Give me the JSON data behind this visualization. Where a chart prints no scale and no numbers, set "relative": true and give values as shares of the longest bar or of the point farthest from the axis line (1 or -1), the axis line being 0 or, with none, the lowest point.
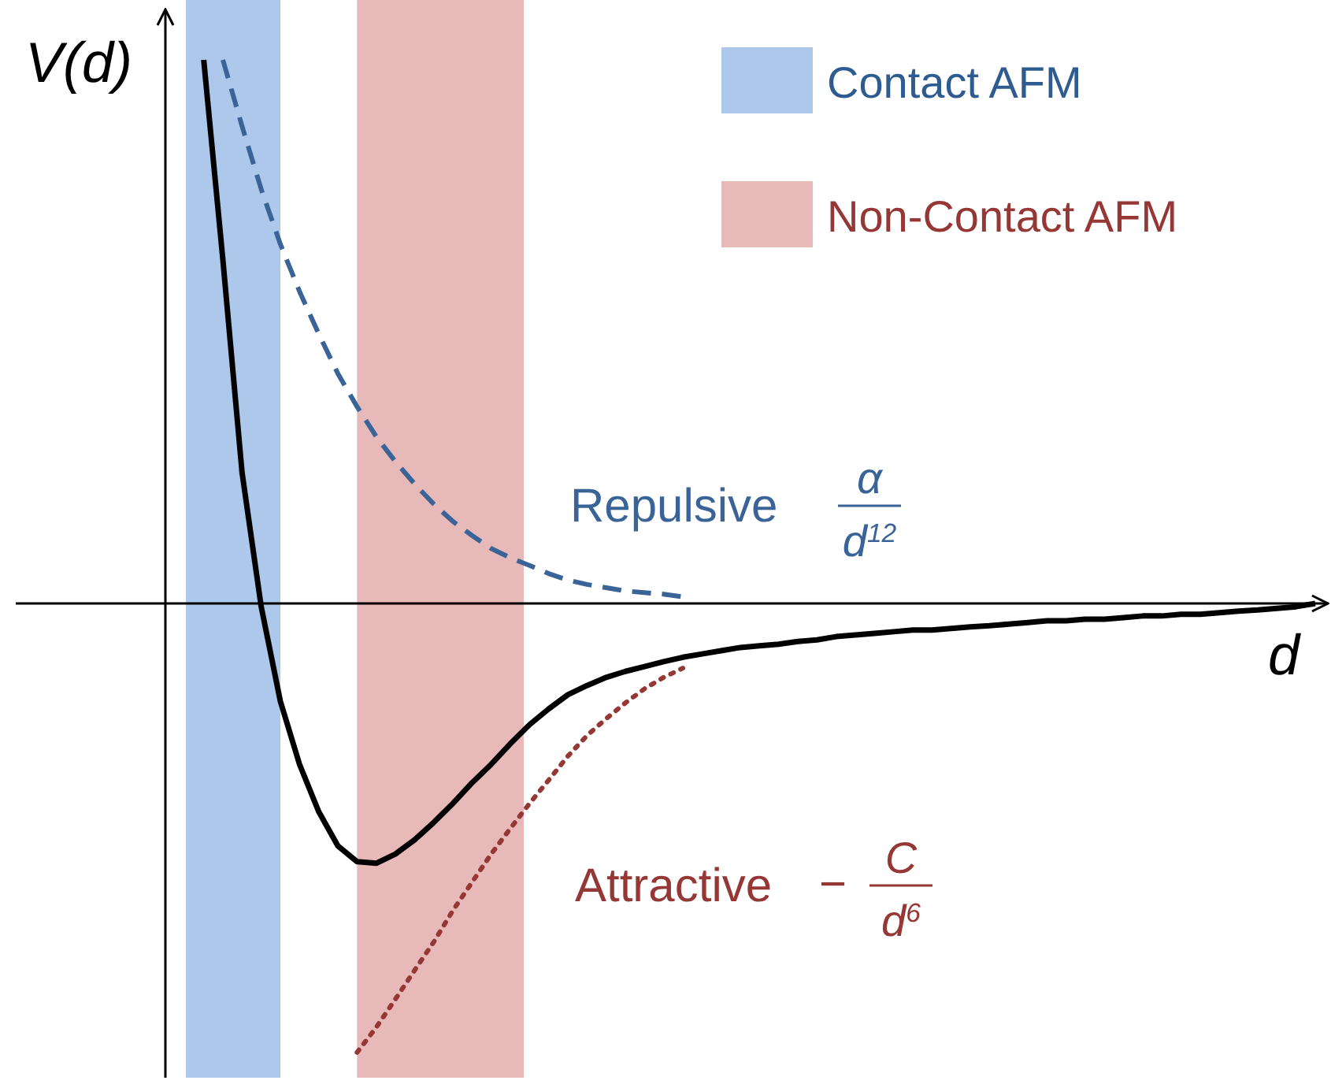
{
  "chart_data": {
    "type": "line",
    "relative": true,
    "xlabel": "d",
    "ylabel": "V(d)",
    "legend": "center",
    "categories": [
      null,
      null,
      null,
      null,
      null,
      null,
      null,
      null,
      null,
      null,
      null,
      null,
      null,
      null,
      null,
      null,
      null,
      null,
      null,
      null,
      null,
      null,
      null,
      null,
      null,
      null,
      null,
      null,
      null,
      null,
      null,
      null,
      null,
      null,
      null,
      null,
      null,
      null,
      null,
      null,
      null,
      null,
      null,
      null,
      null,
      null,
      null,
      null,
      null,
      null,
      null,
      null,
      null,
      null,
      null,
      null,
      null,
      null,
      null,
      null,
      null
    ],
    "series": [
      {
        "color": "#000000",
        "line_style": "solid",
        "values": [
          null,
          null,
          1.0,
          0.632,
          0.241,
          -0.006,
          -0.18,
          -0.296,
          -0.383,
          -0.446,
          -0.475,
          -0.478,
          -0.461,
          -0.435,
          -0.403,
          -0.368,
          -0.33,
          -0.296,
          -0.258,
          -0.223,
          -0.194,
          -0.168,
          -0.151,
          -0.136,
          -0.125,
          -0.116,
          -0.107,
          -0.099,
          -0.093,
          -0.087,
          -0.081,
          -0.078,
          -0.075,
          -0.07,
          -0.067,
          -0.061,
          -0.058,
          -0.055,
          -0.052,
          -0.049,
          -0.049,
          -0.046,
          -0.043,
          -0.041,
          -0.038,
          -0.035,
          -0.032,
          -0.032,
          -0.029,
          -0.029,
          -0.026,
          -0.023,
          -0.023,
          -0.02,
          -0.02,
          -0.017,
          -0.014,
          -0.012,
          -0.009,
          -0.006,
          0
        ]
      },
      {
        "name": "Repulsive",
        "color": "#3a6398",
        "line_style": "dashed",
        "values": [
          null,
          null,
          null,
          1.0,
          0.878,
          0.762,
          0.661,
          0.574,
          0.496,
          0.423,
          0.362,
          0.307,
          0.261,
          0.22,
          0.183,
          0.151,
          0.125,
          0.101,
          0.084,
          0.07,
          0.055,
          0.043,
          0.035,
          0.029,
          0.023,
          0.02,
          0.017,
          0.012,
          null,
          null,
          null,
          null,
          null,
          null,
          null,
          null,
          null,
          null,
          null,
          null,
          null,
          null,
          null,
          null,
          null,
          null,
          null,
          null,
          null,
          null,
          null,
          null,
          null,
          null,
          null,
          null,
          null,
          null,
          null,
          null,
          null
        ]
      },
      {
        "name": "Attractive",
        "color": "#953735",
        "line_style": "dotted",
        "values": [
          null,
          null,
          null,
          null,
          null,
          null,
          null,
          null,
          null,
          null,
          -0.826,
          -0.78,
          -0.728,
          -0.675,
          -0.623,
          -0.565,
          -0.513,
          -0.461,
          -0.414,
          -0.368,
          -0.325,
          -0.281,
          -0.243,
          -0.212,
          -0.183,
          -0.157,
          -0.136,
          -0.119,
          null,
          null,
          null,
          null,
          null,
          null,
          null,
          null,
          null,
          null,
          null,
          null,
          null,
          null,
          null,
          null,
          null,
          null,
          null,
          null,
          null,
          null,
          null,
          null,
          null,
          null,
          null,
          null,
          null,
          null,
          null,
          null,
          null
        ]
      }
    ],
    "annotations": [
      "Contact AFM",
      "Non-Contact AFM",
      "α",
      "d$^{12}$",
      "−",
      "C",
      "d$^{6}$"
    ]
  }
}
